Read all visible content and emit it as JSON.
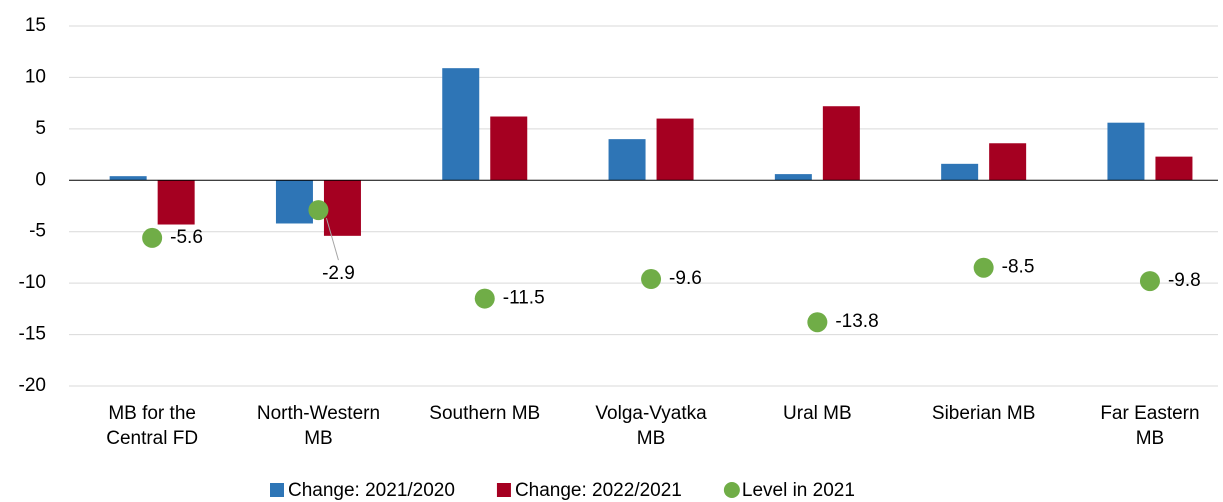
{
  "chart_data": {
    "type": "bar",
    "categories": [
      "MB for the\nCentral FD",
      "North-Western\nMB",
      "Southern MB",
      "Volga-Vyatka\nMB",
      "Ural MB",
      "Siberian MB",
      "Far Eastern\nMB"
    ],
    "series": [
      {
        "name": "Change: 2021/2020",
        "color": "#2e75b6",
        "type": "bar",
        "values": [
          0.4,
          -4.2,
          10.9,
          4.0,
          0.6,
          1.6,
          5.6
        ]
      },
      {
        "name": "Change: 2022/2021",
        "color": "#a50021",
        "type": "bar",
        "values": [
          -4.3,
          -5.4,
          6.2,
          6.0,
          7.2,
          3.6,
          2.3
        ]
      },
      {
        "name": "Level in 2021",
        "color": "#70ad47",
        "type": "scatter",
        "values": [
          -5.6,
          -2.9,
          -11.5,
          -9.6,
          -13.8,
          -8.5,
          -9.8
        ]
      }
    ],
    "ylim": [
      -20,
      15
    ],
    "yticks": [
      -20,
      -15,
      -10,
      -5,
      0,
      5,
      10,
      15
    ],
    "grid": true,
    "legend": "bottom"
  }
}
